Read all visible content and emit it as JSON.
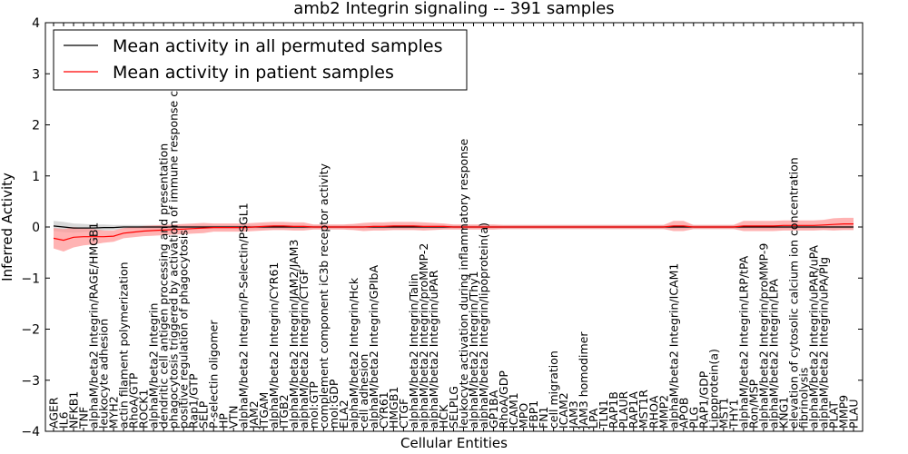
{
  "chart_data": {
    "type": "line",
    "title": "amb2 Integrin signaling -- 391 samples",
    "xlabel": "Cellular Entities",
    "ylabel": "Inferred Activity",
    "ylim": [
      -4,
      4
    ],
    "yticks": [
      -4,
      -3,
      -2,
      -1,
      0,
      1,
      2,
      3,
      4
    ],
    "grid": false,
    "legend_position": "top-left",
    "categories": [
      "AGER",
      "IL6",
      "NFKB1",
      "TNF",
      "alphaM/beta2 Integrin/RAGE/HMGB1",
      "leukocyte adhesion",
      "MYH2",
      "actin filament polymerization",
      "RhoA/GTP",
      "ROCK1",
      "alphaM/beta2 Integrin",
      "dendritic cell antigen processing and presentation",
      "phagocytosis triggered by activation of immune response cell surface",
      "positive regulation of phagocytosis",
      "Rap1/GTP",
      "SELP",
      "P-selectin oligomer",
      "HP",
      "VTN",
      "alphaM/beta2 Integrin/P-Selectin/PSGL1",
      "JAM2",
      "ITGAM",
      "alphaM/beta2 Integrin/CYR61",
      "ITGB2",
      "alphaM/beta2 Integrin/JAM2/JAM3",
      "alphaM/beta2 Integrin/CTGF",
      "mol:GTP",
      "complement component iC3b receptor activity",
      "mol:GDP",
      "ELA2",
      "alphaM/beta2 Integrin/Hck",
      "cell adhesion",
      "alphaM/beta2 Integrin/GPIbA",
      "CYR61",
      "HMGB1",
      "CTGF",
      "alphaM/beta2 Integrin/Talin",
      "alphaM/beta2 Integrin/proMMP-2",
      "alphaM/beta2 Integrin/uPAR",
      "HCK",
      "SELPLG",
      "leukocyte activation during inflammatory response",
      "alphaM/beta2 Integrin/Thy1",
      "alphaM/beta2 Integrin/lipoprotein(a)",
      "GP1BA",
      "RhoA/GDP",
      "ICAM1",
      "MPO",
      "FBP1",
      "FN1",
      "cell migration",
      "ICAM2",
      "JAM3",
      "JAM3 homodimer",
      "LPA",
      "TLN1",
      "RAP1B",
      "PLAUR",
      "RAP1A",
      "MST1R",
      "RHOA",
      "MMP2",
      "alphaM/beta2 Integrin/ICAM1",
      "APOB",
      "PLG",
      "RAP1/GDP",
      "Lipoprotein(a)",
      "MST1",
      "THY1",
      "alphaM/beta2 Integrin/LRP/tPA",
      "Ron/MSP",
      "alphaM/beta2 Integrin/proMMP-9",
      "alphaM/beta2 Integrin/LPA",
      "KNG1",
      "elevation of cytosolic calcium ion concentration",
      "fibrinolysis",
      "alphaM/beta2 Integrin/uPAR/uPA",
      "alphaM/beta2 Integrin/uPA/Plg",
      "PLAT",
      "MMP9",
      "PLAU"
    ],
    "series": [
      {
        "name": "Mean activity in all permuted samples",
        "color": "#000000",
        "values": [
          0.02,
          0.0,
          -0.02,
          -0.02,
          -0.02,
          -0.01,
          -0.01,
          0.0,
          0.0,
          0.0,
          0.0,
          0.0,
          0.0,
          0.0,
          0.0,
          0.0,
          0.0,
          0.0,
          0.0,
          0.0,
          0.0,
          0.0,
          0.0,
          0.0,
          0.0,
          0.0,
          0.0,
          0.0,
          0.0,
          0.0,
          0.0,
          0.0,
          0.0,
          0.0,
          0.0,
          0.0,
          0.0,
          0.0,
          0.0,
          0.0,
          0.0,
          0.0,
          0.0,
          0.0,
          0.0,
          0.0,
          0.0,
          0.0,
          0.0,
          0.0,
          0.0,
          0.0,
          0.0,
          0.0,
          0.0,
          0.0,
          0.0,
          0.0,
          0.0,
          0.0,
          0.0,
          0.0,
          0.0,
          0.0,
          0.0,
          0.0,
          0.0,
          0.0,
          0.0,
          0.0,
          0.0,
          0.0,
          0.0,
          0.0,
          0.0,
          0.0,
          0.0,
          0.0,
          0.0,
          0.0,
          0.0
        ],
        "band": [
          0.1,
          0.1,
          0.09,
          0.08,
          0.07,
          0.06,
          0.05,
          0.04,
          0.04,
          0.04,
          0.04,
          0.04,
          0.04,
          0.04,
          0.04,
          0.04,
          0.04,
          0.04,
          0.04,
          0.04,
          0.04,
          0.04,
          0.04,
          0.04,
          0.04,
          0.04,
          0.04,
          0.04,
          0.04,
          0.04,
          0.04,
          0.04,
          0.04,
          0.04,
          0.04,
          0.04,
          0.04,
          0.04,
          0.04,
          0.04,
          0.04,
          0.04,
          0.04,
          0.04,
          0.04,
          0.04,
          0.04,
          0.04,
          0.04,
          0.04,
          0.04,
          0.04,
          0.04,
          0.04,
          0.04,
          0.04,
          0.04,
          0.04,
          0.04,
          0.04,
          0.04,
          0.04,
          0.04,
          0.04,
          0.04,
          0.04,
          0.04,
          0.04,
          0.04,
          0.04,
          0.04,
          0.04,
          0.04,
          0.04,
          0.04,
          0.04,
          0.04,
          0.04,
          0.04,
          0.04,
          0.04
        ]
      },
      {
        "name": "Mean activity in patient samples",
        "color": "#ff0000",
        "band_color": "#ff9999",
        "values": [
          -0.22,
          -0.26,
          -0.2,
          -0.19,
          -0.19,
          -0.19,
          -0.18,
          -0.12,
          -0.1,
          -0.08,
          -0.07,
          -0.06,
          -0.05,
          -0.04,
          -0.03,
          -0.02,
          -0.01,
          -0.01,
          -0.01,
          -0.01,
          0.0,
          0.01,
          0.02,
          0.02,
          0.01,
          0.01,
          0.0,
          0.0,
          0.0,
          0.0,
          0.0,
          0.0,
          0.01,
          0.01,
          0.02,
          0.02,
          0.02,
          0.01,
          0.01,
          0.01,
          0.0,
          0.0,
          0.0,
          0.0,
          0.0,
          0.0,
          0.0,
          0.0,
          0.0,
          0.0,
          0.0,
          0.0,
          0.0,
          0.0,
          0.0,
          0.0,
          0.0,
          0.0,
          0.0,
          0.0,
          0.0,
          0.0,
          0.02,
          0.02,
          0.0,
          0.0,
          0.0,
          0.0,
          0.0,
          0.02,
          0.02,
          0.02,
          0.02,
          0.03,
          0.03,
          0.03,
          0.03,
          0.04,
          0.05,
          0.06,
          0.06
        ],
        "band": [
          0.2,
          0.22,
          0.2,
          0.17,
          0.15,
          0.12,
          0.11,
          0.1,
          0.1,
          0.1,
          0.1,
          0.1,
          0.1,
          0.1,
          0.1,
          0.1,
          0.08,
          0.08,
          0.08,
          0.08,
          0.08,
          0.08,
          0.08,
          0.08,
          0.08,
          0.08,
          0.05,
          0.05,
          0.05,
          0.05,
          0.06,
          0.08,
          0.08,
          0.08,
          0.08,
          0.08,
          0.08,
          0.08,
          0.07,
          0.06,
          0.05,
          0.05,
          0.05,
          0.05,
          0.05,
          0.04,
          0.04,
          0.04,
          0.04,
          0.04,
          0.04,
          0.04,
          0.04,
          0.04,
          0.04,
          0.04,
          0.04,
          0.04,
          0.04,
          0.04,
          0.04,
          0.04,
          0.1,
          0.1,
          0.04,
          0.04,
          0.04,
          0.04,
          0.04,
          0.1,
          0.1,
          0.1,
          0.1,
          0.1,
          0.1,
          0.1,
          0.1,
          0.1,
          0.12,
          0.12,
          0.12
        ]
      }
    ]
  }
}
